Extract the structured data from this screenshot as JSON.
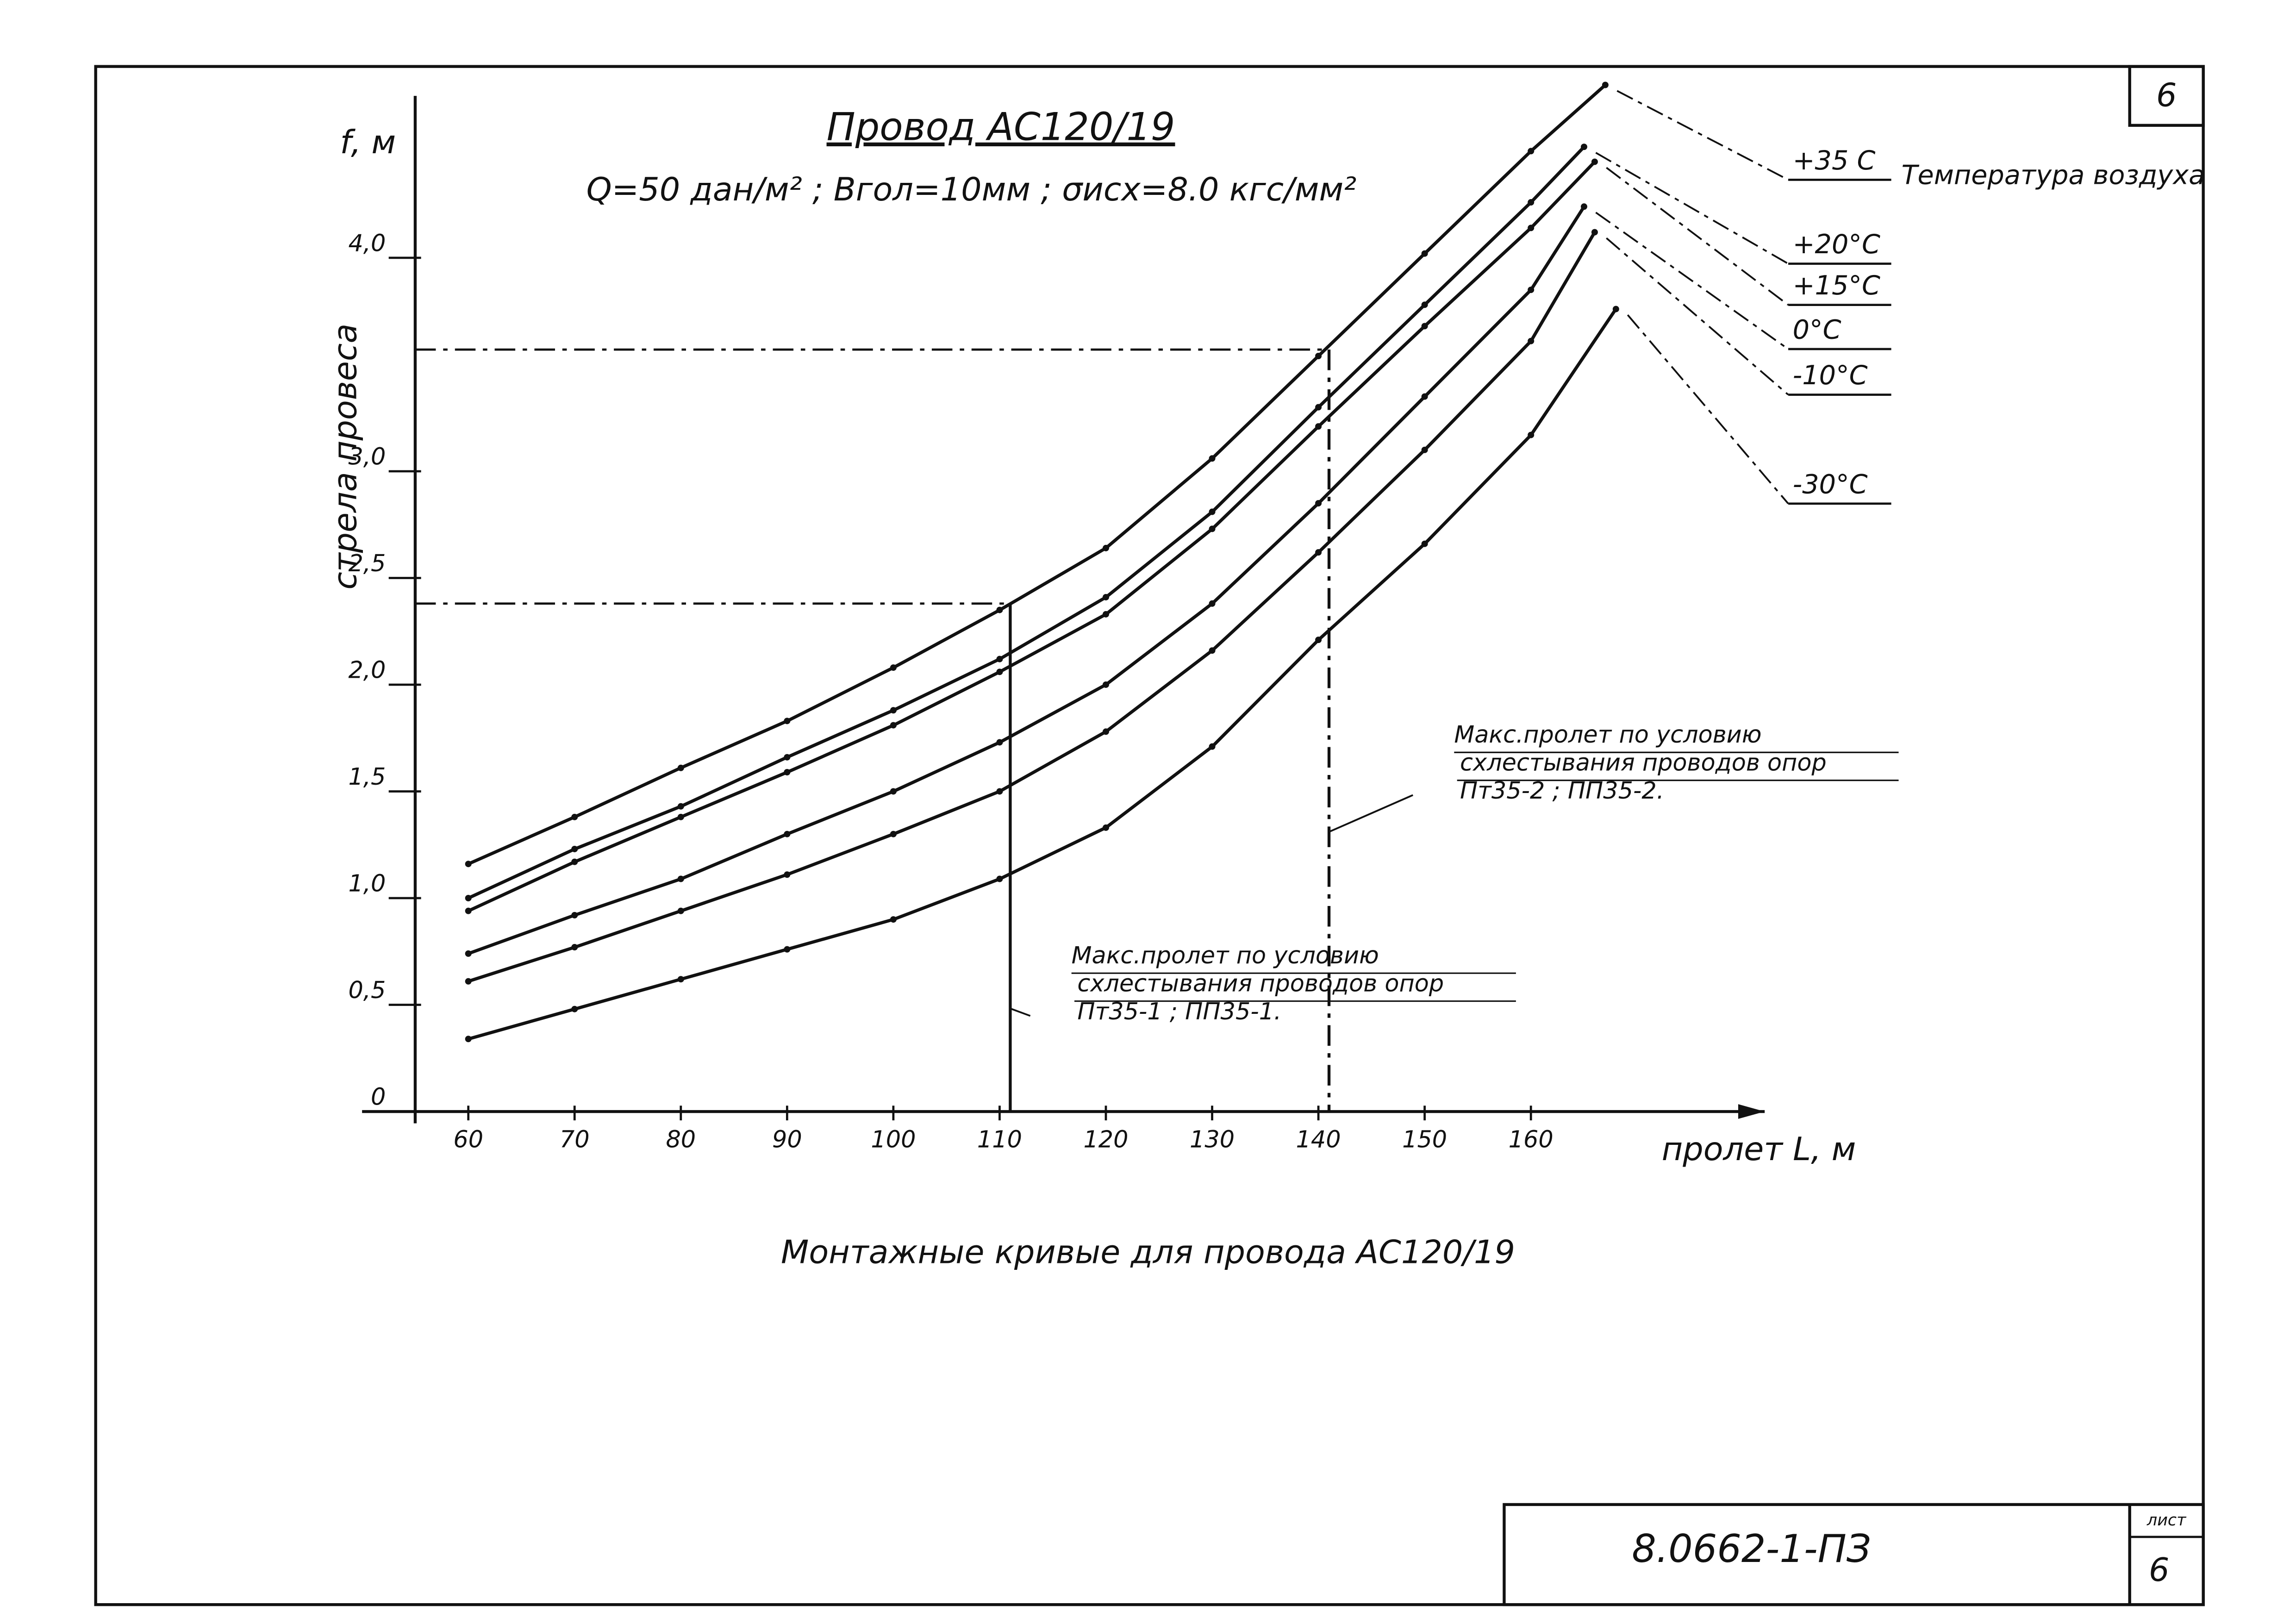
{
  "sheet_number": "6",
  "stamp": {
    "code": "8.0662-1-ПЗ",
    "sheet_label": "лист",
    "sheet": "6"
  },
  "chart_data": {
    "type": "line",
    "title": "Провод АС120/19",
    "subtitle": "Q=50 дан/м² ; Bгол=10мм ; σисх=8.0 кгс/мм²",
    "y_unit": "f, м",
    "y_label": "стрела провеса",
    "x_label": "пролет L, м",
    "caption": "Монтажные кривые для провода АС120/19",
    "legend_title": "Температура воздуха",
    "xlim": [
      50,
      182
    ],
    "xticks": [
      60,
      70,
      80,
      90,
      100,
      110,
      120,
      130,
      140,
      150,
      160
    ],
    "ylim": [
      0,
      4.9
    ],
    "yticks": [
      0,
      {
        "value": 0.5,
        "label": "0,5"
      },
      {
        "value": 1.0,
        "label": "1,0"
      },
      {
        "value": 1.5,
        "label": "1,5"
      },
      {
        "value": 2.0,
        "label": "2,0"
      },
      {
        "value": 2.5,
        "label": "2,5"
      },
      {
        "value": 3.0,
        "label": "3,0"
      },
      {
        "value": 4.0,
        "label": "4,0"
      }
    ],
    "color": "#111111",
    "series": [
      {
        "name": "+35 С",
        "x": [
          60,
          70,
          80,
          90,
          100,
          110,
          120,
          130,
          140,
          150,
          160,
          167
        ],
        "values": [
          1.16,
          1.38,
          1.61,
          1.83,
          2.08,
          2.35,
          2.64,
          3.06,
          3.54,
          4.02,
          4.5,
          4.81
        ]
      },
      {
        "name": "+20°С",
        "x": [
          60,
          70,
          80,
          90,
          100,
          110,
          120,
          130,
          140,
          150,
          160,
          165
        ],
        "values": [
          1.0,
          1.23,
          1.43,
          1.66,
          1.88,
          2.12,
          2.41,
          2.81,
          3.3,
          3.78,
          4.26,
          4.52
        ]
      },
      {
        "name": "+15°С",
        "x": [
          60,
          70,
          80,
          90,
          100,
          110,
          120,
          130,
          140,
          150,
          160,
          166
        ],
        "values": [
          0.94,
          1.17,
          1.38,
          1.59,
          1.81,
          2.06,
          2.33,
          2.73,
          3.21,
          3.68,
          4.14,
          4.45
        ]
      },
      {
        "name": "0°С",
        "x": [
          60,
          70,
          80,
          90,
          100,
          110,
          120,
          130,
          140,
          150,
          160,
          165
        ],
        "values": [
          0.74,
          0.92,
          1.09,
          1.3,
          1.5,
          1.73,
          2.0,
          2.38,
          2.85,
          3.35,
          3.85,
          4.24
        ]
      },
      {
        "name": "-10°С",
        "x": [
          60,
          70,
          80,
          90,
          100,
          110,
          120,
          130,
          140,
          150,
          160,
          166
        ],
        "values": [
          0.61,
          0.77,
          0.94,
          1.11,
          1.3,
          1.5,
          1.78,
          2.16,
          2.62,
          3.1,
          3.61,
          4.12
        ]
      },
      {
        "name": "-30°С",
        "x": [
          60,
          70,
          80,
          90,
          100,
          110,
          120,
          130,
          140,
          150,
          160,
          168
        ],
        "values": [
          0.34,
          0.48,
          0.62,
          0.76,
          0.9,
          1.09,
          1.33,
          1.71,
          2.21,
          2.66,
          3.17,
          3.76
        ]
      }
    ],
    "annotations": [
      {
        "text": "Макс.пролет по условию схлестывания проводов опор Пт35-1 ; ПП35-1.",
        "x": 111,
        "y": 2.38
      },
      {
        "text": "Макс.пролет по условию схлестывания проводов опор Пт35-2 ; ПП35-2.",
        "x": 141,
        "y": 3.57
      }
    ]
  }
}
